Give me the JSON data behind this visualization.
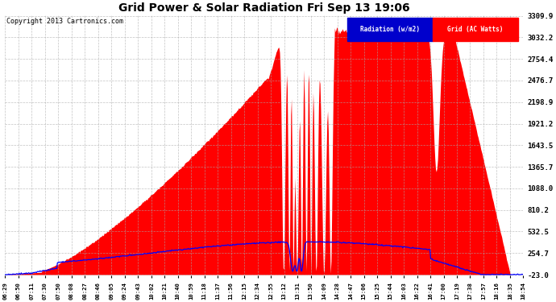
{
  "title": "Grid Power & Solar Radiation Fri Sep 13 19:06",
  "copyright": "Copyright 2013 Cartronics.com",
  "legend_radiation": "Radiation (w/m2)",
  "legend_grid": "Grid (AC Watts)",
  "yticks": [
    3309.9,
    3032.2,
    2754.4,
    2476.7,
    2198.9,
    1921.2,
    1643.5,
    1365.7,
    1088.0,
    810.2,
    532.5,
    254.7,
    -23.0
  ],
  "xtick_labels": [
    "06:29",
    "06:50",
    "07:11",
    "07:30",
    "07:50",
    "08:08",
    "08:27",
    "08:46",
    "09:05",
    "09:24",
    "09:43",
    "10:02",
    "10:21",
    "10:40",
    "10:59",
    "11:18",
    "11:37",
    "11:56",
    "12:15",
    "12:34",
    "12:55",
    "13:12",
    "13:31",
    "13:50",
    "14:09",
    "14:28",
    "14:47",
    "15:06",
    "15:25",
    "15:44",
    "16:03",
    "16:22",
    "16:41",
    "17:00",
    "17:19",
    "17:38",
    "17:57",
    "18:16",
    "18:35",
    "18:54"
  ],
  "ymin": -23.0,
  "ymax": 3309.9,
  "radiation_color": "#0000FF",
  "solar_fill_color": "#FF0000",
  "bg_color": "#FFFFFF",
  "grid_color": "#AAAAAA"
}
